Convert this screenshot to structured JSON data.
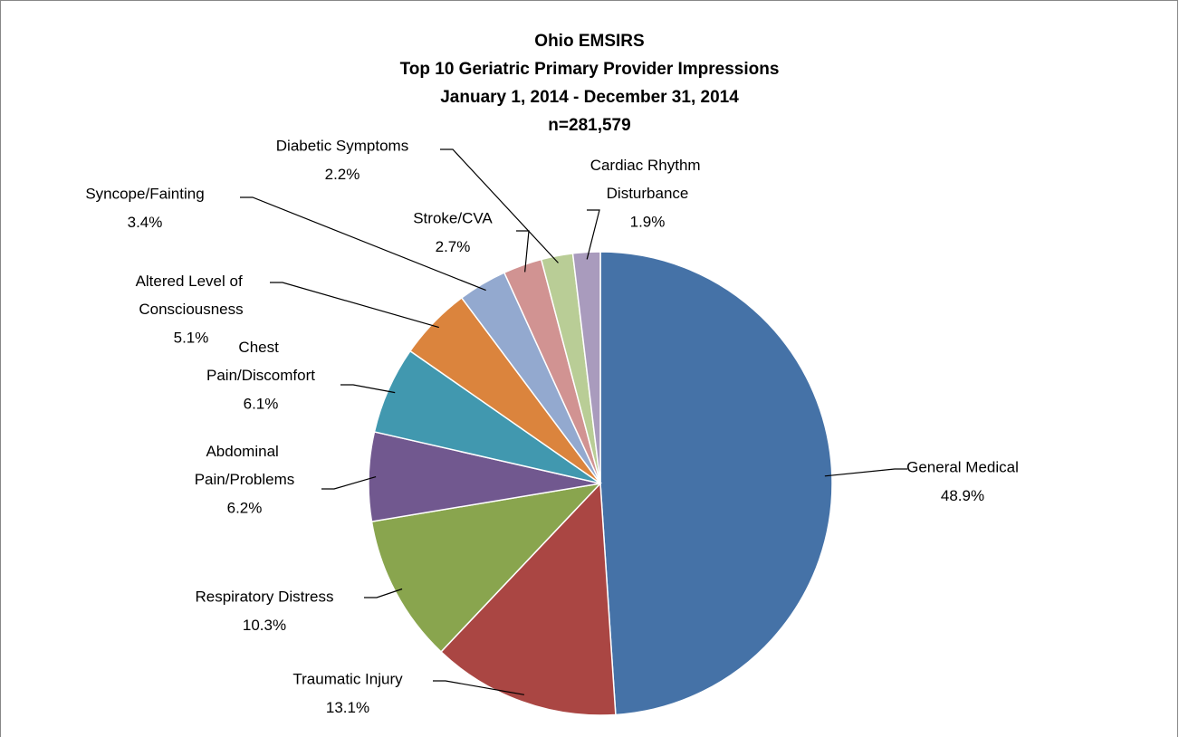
{
  "chart_data": {
    "type": "pie",
    "title": [
      "Ohio EMSIRS",
      "Top 10 Geriatric Primary Provider Impressions",
      "January 1, 2014 - December 31, 2014",
      "n=281,579"
    ],
    "categories": [
      "General Medical",
      "Traumatic Injury",
      "Respiratory Distress",
      "Abdominal Pain/Problems",
      "Chest Pain/Discomfort",
      "Altered Level of Consciousness",
      "Syncope/Fainting",
      "Stroke/CVA",
      "Diabetic Symptoms",
      "Cardiac Rhythm Disturbance"
    ],
    "values": [
      48.9,
      13.1,
      10.3,
      6.2,
      6.1,
      5.1,
      3.4,
      2.7,
      2.2,
      1.9
    ],
    "value_labels": [
      "48.9%",
      "13.1%",
      "10.3%",
      "6.2%",
      "6.1%",
      "5.1%",
      "3.4%",
      "2.7%",
      "2.2%",
      "1.9%"
    ],
    "colors": [
      "#4572a7",
      "#aa4643",
      "#89a54e",
      "#71588f",
      "#4198af",
      "#db843d",
      "#93a9cf",
      "#d19392",
      "#b9cd96",
      "#a99bbd"
    ]
  }
}
